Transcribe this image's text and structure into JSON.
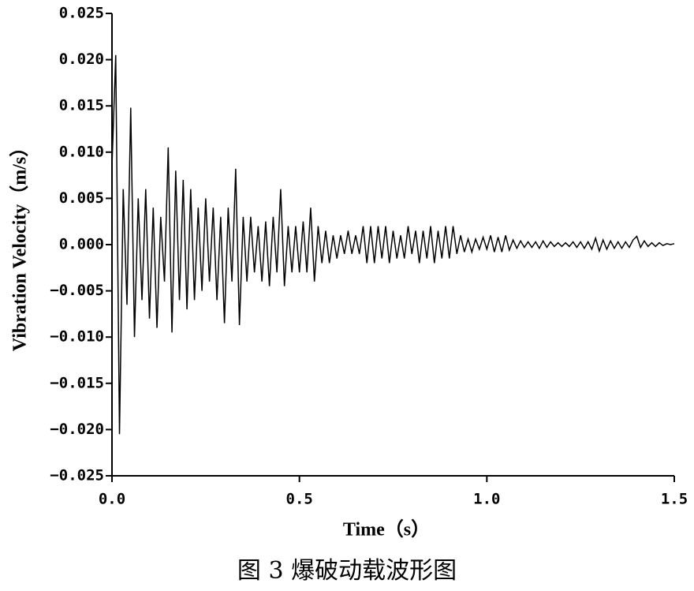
{
  "chart_data": {
    "type": "line",
    "caption": "图 3  爆破动载波形图",
    "xlabel": "Time（s）",
    "ylabel": "Vibration Velocity（m/s）",
    "color": "#000000",
    "xlim": [
      0,
      1.5
    ],
    "ylim": [
      -0.025,
      0.025
    ],
    "xticks": [
      {
        "value": 0,
        "label": "0.0"
      },
      {
        "value": 0.5,
        "label": "0.5"
      },
      {
        "value": 1,
        "label": "1.0"
      },
      {
        "value": 1.5,
        "label": "1.5"
      }
    ],
    "yticks": [
      {
        "value": -0.025,
        "label": "−0.025"
      },
      {
        "value": -0.02,
        "label": "−0.020"
      },
      {
        "value": -0.015,
        "label": "−0.015"
      },
      {
        "value": -0.01,
        "label": "−0.010"
      },
      {
        "value": -0.005,
        "label": "−0.005"
      },
      {
        "value": 0,
        "label": "0.000"
      },
      {
        "value": 0.005,
        "label": "0.005"
      },
      {
        "value": 0.01,
        "label": "0.010"
      },
      {
        "value": 0.015,
        "label": "0.015"
      },
      {
        "value": 0.02,
        "label": "0.020"
      },
      {
        "value": 0.025,
        "label": "0.025"
      }
    ],
    "x": [
      0.0,
      0.01,
      0.02,
      0.03,
      0.04,
      0.05,
      0.06,
      0.07,
      0.08,
      0.09,
      0.1,
      0.11,
      0.12,
      0.13,
      0.14,
      0.15,
      0.16,
      0.17,
      0.18,
      0.19,
      0.2,
      0.21,
      0.22,
      0.23,
      0.24,
      0.25,
      0.26,
      0.27,
      0.28,
      0.29,
      0.3,
      0.31,
      0.32,
      0.33,
      0.34,
      0.35,
      0.36,
      0.37,
      0.38,
      0.39,
      0.4,
      0.41,
      0.42,
      0.43,
      0.44,
      0.45,
      0.46,
      0.47,
      0.48,
      0.49,
      0.5,
      0.51,
      0.52,
      0.53,
      0.54,
      0.55,
      0.56,
      0.57,
      0.58,
      0.59,
      0.6,
      0.61,
      0.62,
      0.63,
      0.64,
      0.65,
      0.66,
      0.67,
      0.68,
      0.69,
      0.7,
      0.71,
      0.72,
      0.73,
      0.74,
      0.75,
      0.76,
      0.77,
      0.78,
      0.79,
      0.8,
      0.81,
      0.82,
      0.83,
      0.84,
      0.85,
      0.86,
      0.87,
      0.88,
      0.89,
      0.9,
      0.91,
      0.92,
      0.93,
      0.94,
      0.95,
      0.96,
      0.97,
      0.98,
      0.99,
      1.0,
      1.01,
      1.02,
      1.03,
      1.04,
      1.05,
      1.06,
      1.07,
      1.08,
      1.09,
      1.1,
      1.11,
      1.12,
      1.13,
      1.14,
      1.15,
      1.16,
      1.17,
      1.18,
      1.19,
      1.2,
      1.21,
      1.22,
      1.23,
      1.24,
      1.25,
      1.26,
      1.27,
      1.28,
      1.29,
      1.3,
      1.31,
      1.32,
      1.33,
      1.34,
      1.35,
      1.36,
      1.37,
      1.38,
      1.39,
      1.4,
      1.41,
      1.42,
      1.43,
      1.44,
      1.45,
      1.46,
      1.47,
      1.48,
      1.49,
      1.5
    ],
    "values": [
      0.0085,
      0.0205,
      -0.0205,
      0.006,
      -0.0065,
      0.0148,
      -0.01,
      0.005,
      -0.006,
      0.006,
      -0.008,
      0.004,
      -0.009,
      0.003,
      -0.004,
      0.0105,
      -0.0095,
      0.008,
      -0.006,
      0.007,
      -0.007,
      0.006,
      -0.006,
      0.004,
      -0.005,
      0.005,
      -0.004,
      0.004,
      -0.006,
      0.003,
      -0.0085,
      0.004,
      -0.004,
      0.0082,
      -0.0087,
      0.003,
      -0.004,
      0.003,
      -0.003,
      0.002,
      -0.004,
      0.0025,
      -0.0045,
      0.003,
      -0.003,
      0.006,
      -0.0045,
      0.002,
      -0.003,
      0.002,
      -0.003,
      0.0025,
      -0.003,
      0.004,
      -0.004,
      0.002,
      -0.002,
      0.0015,
      -0.002,
      0.001,
      -0.0015,
      0.001,
      -0.001,
      0.0015,
      -0.001,
      0.001,
      -0.001,
      0.002,
      -0.002,
      0.002,
      -0.002,
      0.002,
      -0.0015,
      0.002,
      -0.002,
      0.0015,
      -0.0015,
      0.001,
      -0.0015,
      0.002,
      -0.001,
      0.0015,
      -0.002,
      0.0015,
      -0.0015,
      0.002,
      -0.002,
      0.0015,
      -0.0015,
      0.002,
      -0.0015,
      0.002,
      -0.001,
      0.001,
      -0.0008,
      0.0006,
      -0.0008,
      0.0006,
      -0.0005,
      0.0008,
      -0.0005,
      0.001,
      -0.0008,
      0.0008,
      -0.0008,
      0.001,
      -0.0006,
      0.0005,
      -0.0004,
      0.0004,
      -0.0003,
      0.0003,
      -0.0003,
      0.0003,
      -0.0004,
      0.0004,
      -0.0003,
      0.0003,
      -0.0002,
      0.0002,
      -0.0002,
      0.0002,
      -0.0002,
      0.0003,
      -0.0003,
      0.0003,
      -0.0004,
      0.0003,
      -0.0005,
      0.0007,
      -0.0007,
      0.0005,
      -0.0005,
      0.0004,
      -0.0004,
      0.0003,
      -0.0004,
      0.0003,
      -0.0003,
      0.0005,
      0.0009,
      -0.0003,
      0.0004,
      -0.0002,
      0.0002,
      -0.0002,
      0.0002,
      -0.0001,
      0.0001,
      0,
      0.0001
    ]
  }
}
